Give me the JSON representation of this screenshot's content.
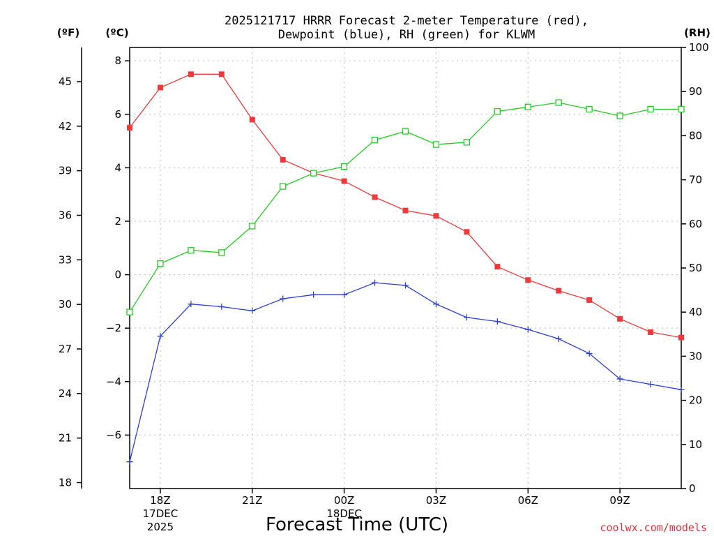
{
  "chart_data": {
    "type": "line",
    "title_line1": "2025121717 HRRR Forecast 2-meter Temperature (red),",
    "title_line2": "Dewpoint (blue), RH (green) for KLWM",
    "xlabel": "Forecast Time (UTC)",
    "credit": "coolwx.com/models",
    "unit_left_outer": "(ºF)",
    "unit_left_inner": "(ºC)",
    "unit_right": "(RH)",
    "x_hours": [
      17,
      18,
      19,
      20,
      21,
      22,
      23,
      24,
      25,
      26,
      27,
      28,
      29,
      30,
      31,
      32,
      33,
      34,
      35
    ],
    "x_ticks": [
      {
        "hour": 18,
        "label": "18Z",
        "sub1": "17DEC",
        "sub2": "2025"
      },
      {
        "hour": 21,
        "label": "21Z"
      },
      {
        "hour": 24,
        "label": "00Z",
        "sub1": "18DEC"
      },
      {
        "hour": 27,
        "label": "03Z"
      },
      {
        "hour": 30,
        "label": "06Z"
      },
      {
        "hour": 33,
        "label": "09Z"
      }
    ],
    "xlim": [
      17,
      35
    ],
    "celsius_axis": {
      "ylim": [
        -8,
        8.5
      ],
      "ticks": [
        -6,
        -4,
        -2,
        0,
        2,
        4,
        6,
        8
      ]
    },
    "fahrenheit_axis": {
      "ticks": [
        18,
        21,
        24,
        27,
        30,
        33,
        36,
        39,
        42,
        45
      ]
    },
    "rh_axis": {
      "ylim": [
        0,
        100
      ],
      "ticks": [
        0,
        10,
        20,
        30,
        40,
        50,
        60,
        70,
        80,
        90,
        100
      ]
    },
    "colors": {
      "temperature": "#ee3a3a",
      "dewpoint": "#2c3fdc",
      "rh": "#22cc22"
    },
    "series": [
      {
        "name": "Temperature",
        "axis": "C",
        "marker": "filled-square",
        "values": [
          5.5,
          7.0,
          7.5,
          7.5,
          5.8,
          4.3,
          3.8,
          3.5,
          2.9,
          2.4,
          2.2,
          1.6,
          0.3,
          -0.2,
          -0.6,
          -0.95,
          -1.65,
          -2.15,
          -2.35
        ]
      },
      {
        "name": "Dewpoint",
        "axis": "C",
        "marker": "plus",
        "values": [
          -7.0,
          -2.3,
          -1.1,
          -1.2,
          -1.35,
          -0.9,
          -0.75,
          -0.75,
          -0.3,
          -0.4,
          -1.1,
          -1.6,
          -1.75,
          -2.05,
          -2.4,
          -2.95,
          -3.9,
          -4.1,
          -4.3
        ]
      },
      {
        "name": "RH",
        "axis": "RH",
        "marker": "open-square",
        "values": [
          40,
          51,
          54,
          53.5,
          59.5,
          68.5,
          71.5,
          73,
          79,
          81,
          78,
          78.5,
          85.5,
          86.5,
          87.5,
          86,
          84.5,
          86,
          86
        ]
      }
    ]
  }
}
